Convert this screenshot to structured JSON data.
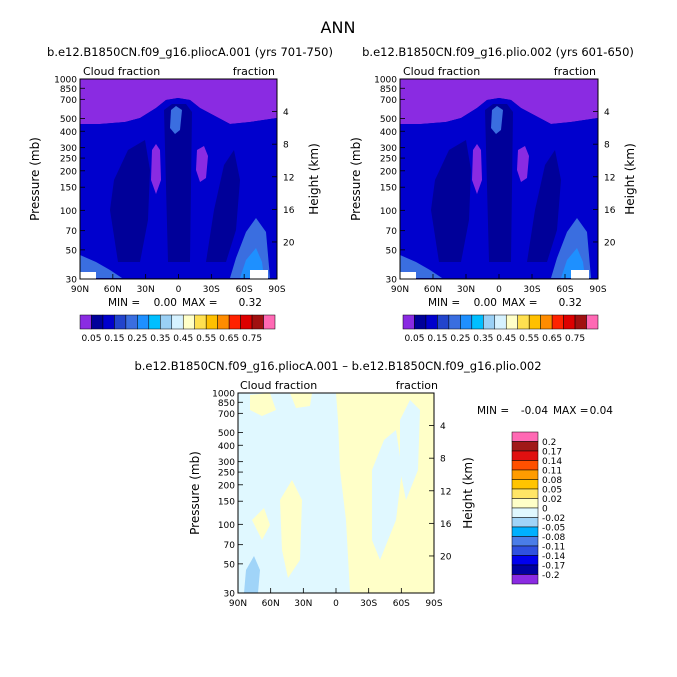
{
  "page_title": "ANN",
  "colors": {
    "full": [
      "#8a2be2",
      "#000099",
      "#0000cd",
      "#2244cc",
      "#3a6ee0",
      "#1e90ff",
      "#00bfff",
      "#9ad0f5",
      "#d6f2ff",
      "#ffffc8",
      "#ffe050",
      "#ffc000",
      "#ff8c00",
      "#ff2200",
      "#dd0000",
      "#a01010",
      "#ff69b4"
    ],
    "diff": [
      "#8a2be2",
      "#0000a0",
      "#0000ee",
      "#2f50e0",
      "#4a7de8",
      "#00b0ff",
      "#a0d4f8",
      "#e0f8ff",
      "#ffffc8",
      "#ffe566",
      "#ffc400",
      "#ff9c00",
      "#ff5000",
      "#e01010",
      "#a01818",
      "#ff69b4"
    ]
  },
  "chart_data": [
    {
      "type": "heatmap",
      "title": "b.e12.B1850CN.f09_g16.pliocA.001 (yrs 701-750)",
      "left_label": "Cloud fraction",
      "right_label": "fraction",
      "ylabel": "Pressure (mb)",
      "ylabel_right": "Height (km)",
      "x_ticks": [
        "90N",
        "60N",
        "30N",
        "0",
        "30S",
        "60S",
        "90S"
      ],
      "xlim": [
        90,
        -90
      ],
      "y_ticks": [
        "30",
        "50",
        "70",
        "100",
        "150",
        "200",
        "250",
        "300",
        "400",
        "500",
        "700",
        "850",
        "1000"
      ],
      "ylim": [
        1000,
        30
      ],
      "height_ticks": [
        "20",
        "16",
        "12",
        "8",
        "4"
      ],
      "min_label": "MIN =",
      "min_value": "0.00",
      "max_label": "MAX =",
      "max_value": "0.32",
      "levels": [
        "0.05",
        "0.15",
        "0.25",
        "0.35",
        "0.45",
        "0.55",
        "0.65",
        "0.75"
      ]
    },
    {
      "type": "heatmap",
      "title": "b.e12.B1850CN.f09_g16.plio.002 (yrs 601-650)",
      "left_label": "Cloud fraction",
      "right_label": "fraction",
      "ylabel": "Pressure (mb)",
      "ylabel_right": "Height (km)",
      "x_ticks": [
        "90N",
        "60N",
        "30N",
        "0",
        "30S",
        "60S",
        "90S"
      ],
      "xlim": [
        90,
        -90
      ],
      "y_ticks": [
        "30",
        "50",
        "70",
        "100",
        "150",
        "200",
        "250",
        "300",
        "400",
        "500",
        "700",
        "850",
        "1000"
      ],
      "ylim": [
        1000,
        30
      ],
      "height_ticks": [
        "20",
        "16",
        "12",
        "8",
        "4"
      ],
      "min_label": "MIN =",
      "min_value": "0.00",
      "max_label": "MAX =",
      "max_value": "0.32",
      "levels": [
        "0.05",
        "0.15",
        "0.25",
        "0.35",
        "0.45",
        "0.55",
        "0.65",
        "0.75"
      ]
    },
    {
      "type": "heatmap",
      "title": "b.e12.B1850CN.f09_g16.pliocA.001 – b.e12.B1850CN.f09_g16.plio.002",
      "left_label": "Cloud fraction",
      "right_label": "fraction",
      "ylabel": "Pressure (mb)",
      "ylabel_right": "Height (km)",
      "x_ticks": [
        "90N",
        "60N",
        "30N",
        "0",
        "30S",
        "60S",
        "90S"
      ],
      "xlim": [
        90,
        -90
      ],
      "y_ticks": [
        "30",
        "50",
        "70",
        "100",
        "150",
        "200",
        "250",
        "300",
        "400",
        "500",
        "700",
        "850",
        "1000"
      ],
      "ylim": [
        1000,
        30
      ],
      "height_ticks": [
        "20",
        "16",
        "12",
        "8",
        "4"
      ],
      "min_label": "MIN =",
      "min_value": "-0.04",
      "max_label": "MAX =",
      "max_value": "0.04",
      "levels": [
        "0.2",
        "0.17",
        "0.14",
        "0.11",
        "0.08",
        "0.05",
        "0.02",
        "0",
        "-0.02",
        "-0.05",
        "-0.08",
        "-0.11",
        "-0.14",
        "-0.17",
        "-0.2"
      ]
    }
  ]
}
